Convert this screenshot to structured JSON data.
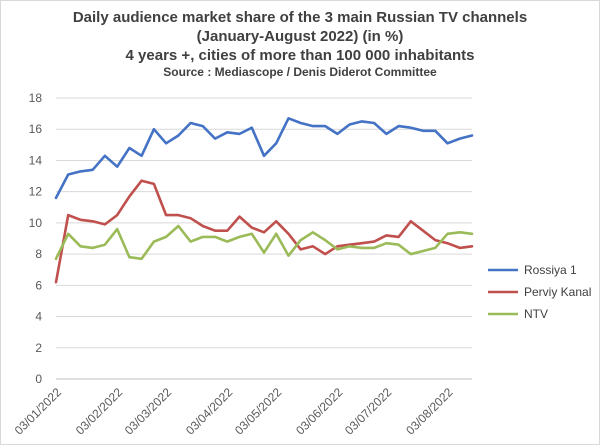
{
  "chart_data": {
    "type": "line",
    "title": "Daily audience market share of the 3 main Russian TV channels",
    "subtitle": "(January-August 2022) (in %)",
    "subtitle2": "4 years +, cities of more than 100 000 inhabitants",
    "source": "Source : Mediascope / Denis Diderot Committee",
    "xlabel": "",
    "ylabel": "",
    "ylim": [
      0,
      18
    ],
    "yticks": [
      0,
      2,
      4,
      6,
      8,
      10,
      12,
      14,
      16,
      18
    ],
    "grid": true,
    "legend_position": "right",
    "x_tick_labels": [
      "03/01/2022",
      "03/02/2022",
      "03/03/2022",
      "03/04/2022",
      "03/05/2022",
      "03/06/2022",
      "03/07/2022",
      "03/08/2022"
    ],
    "x_tick_index": [
      0,
      5,
      9,
      14,
      18,
      23,
      27,
      32
    ],
    "series": [
      {
        "name": "Rossiya 1",
        "color": "#4472c4",
        "values": [
          11.6,
          13.1,
          13.3,
          13.4,
          14.3,
          13.6,
          14.8,
          14.3,
          16.0,
          15.1,
          15.6,
          16.4,
          16.2,
          15.4,
          15.8,
          15.7,
          16.1,
          14.3,
          15.1,
          16.7,
          16.4,
          16.2,
          16.2,
          15.7,
          16.3,
          16.5,
          16.4,
          15.7,
          16.2,
          16.1,
          15.9,
          15.9,
          15.1,
          15.4,
          15.6
        ]
      },
      {
        "name": "Perviy Kanal",
        "color": "#c0504d",
        "values": [
          6.2,
          10.5,
          10.2,
          10.1,
          9.9,
          10.5,
          11.7,
          12.7,
          12.5,
          10.5,
          10.5,
          10.3,
          9.8,
          9.5,
          9.5,
          10.4,
          9.7,
          9.4,
          10.1,
          9.3,
          8.3,
          8.5,
          8.0,
          8.5,
          8.6,
          8.7,
          8.8,
          9.2,
          9.1,
          10.1,
          9.5,
          8.9,
          8.7,
          8.4,
          8.5
        ]
      },
      {
        "name": "NTV",
        "color": "#9bbb59",
        "values": [
          7.7,
          9.3,
          8.5,
          8.4,
          8.6,
          9.6,
          7.8,
          7.7,
          8.8,
          9.1,
          9.8,
          8.8,
          9.1,
          9.1,
          8.8,
          9.1,
          9.3,
          8.1,
          9.3,
          7.9,
          8.9,
          9.4,
          8.9,
          8.3,
          8.5,
          8.4,
          8.4,
          8.7,
          8.6,
          8.0,
          8.2,
          8.4,
          9.3,
          9.4,
          9.3
        ]
      }
    ]
  }
}
